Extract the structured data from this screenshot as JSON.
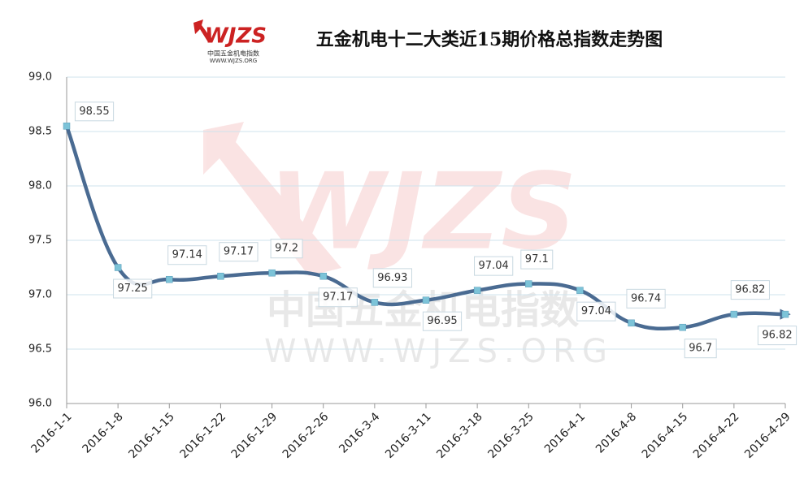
{
  "chart_data": {
    "type": "line",
    "title": "五金机电十二大类近15期价格总指数走势图",
    "logo": {
      "mark": "WJZS",
      "name": "中国五金机电指数",
      "url": "WWW.WJZS.ORG"
    },
    "categories": [
      "2016-1-1",
      "2016-1-8",
      "2016-1-15",
      "2016-1-22",
      "2016-1-29",
      "2016-2-26",
      "2016-3-4",
      "2016-3-11",
      "2016-3-18",
      "2016-3-25",
      "2016-4-1",
      "2016-4-8",
      "2016-4-15",
      "2016-4-22",
      "2016-4-29"
    ],
    "series": [
      {
        "name": "价格总指数",
        "color": "#4a6b92",
        "marker_color": "#7cc3d8",
        "values": [
          98.55,
          97.25,
          97.14,
          97.17,
          97.2,
          97.17,
          96.93,
          96.95,
          97.04,
          97.1,
          97.04,
          96.74,
          96.7,
          96.82,
          96.82
        ]
      }
    ],
    "ylim": [
      96,
      99
    ],
    "yticks": [
      {
        "value": 96,
        "label": "96.0"
      },
      96.5,
      {
        "value": 97,
        "label": "97.0"
      },
      97.5,
      {
        "value": 98,
        "label": "98.0"
      },
      98.5,
      {
        "value": 99,
        "label": "99.0"
      }
    ],
    "grid": true
  }
}
